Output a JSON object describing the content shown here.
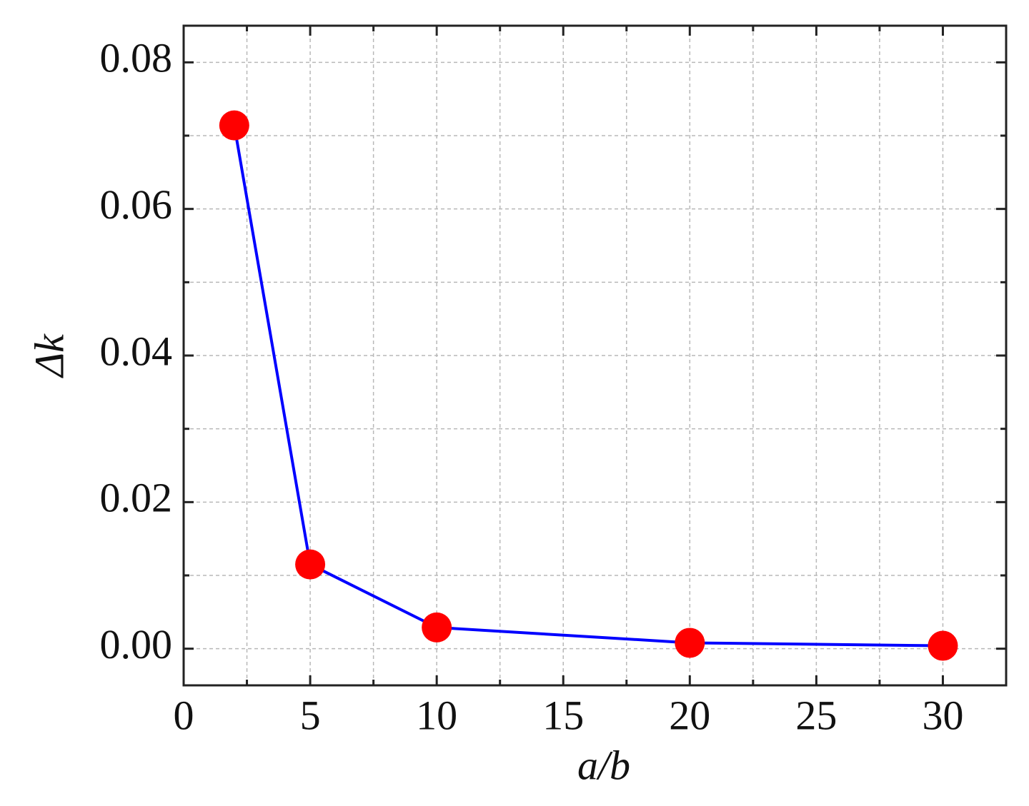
{
  "chart_data": {
    "type": "line",
    "x_label": "a/b",
    "y_label": "Δk",
    "x": [
      2,
      5,
      10,
      20,
      30
    ],
    "series": [
      {
        "name": "Δk",
        "color": "#0000ff",
        "marker_color": "#ff0000",
        "values": [
          0.0714,
          0.0115,
          0.0029,
          0.0008,
          0.0004
        ]
      }
    ],
    "xlim": [
      0,
      32.5
    ],
    "ylim": [
      -0.005,
      0.085
    ],
    "xticks": [
      0,
      5,
      10,
      15,
      20,
      25,
      30
    ],
    "xminor_ticks": [
      2.5,
      7.5,
      12.5,
      17.5,
      22.5,
      27.5
    ],
    "yticks": [
      {
        "value": 0,
        "label": "0.00"
      },
      {
        "value": 0.02,
        "label": "0.02"
      },
      {
        "value": 0.04,
        "label": "0.04"
      },
      {
        "value": 0.06,
        "label": "0.06"
      },
      {
        "value": 0.08,
        "label": "0.08"
      }
    ],
    "yminor_ticks": [
      0.01,
      0.03,
      0.05,
      0.07
    ],
    "grid": true
  }
}
